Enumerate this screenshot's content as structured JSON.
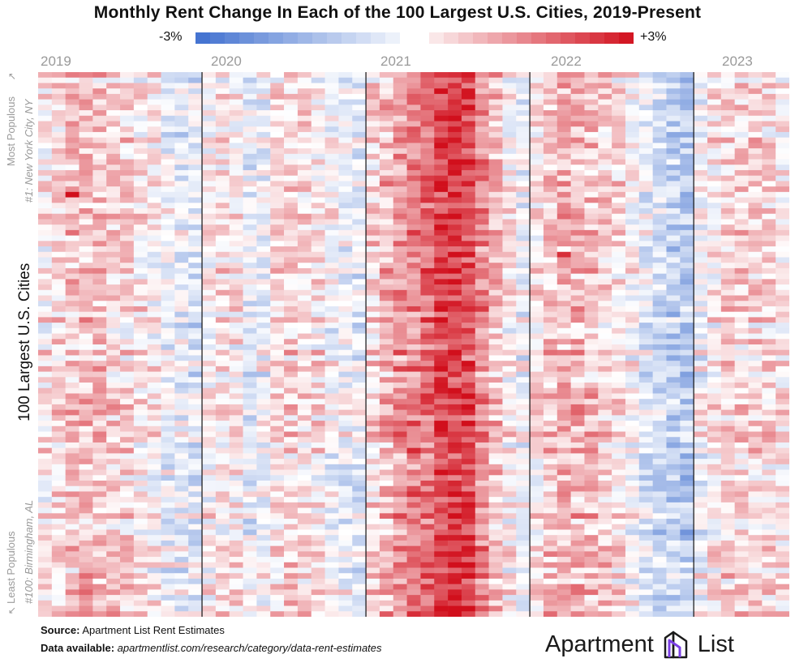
{
  "title": "Monthly Rent Change In Each of the 100 Largest U.S. Cities, 2019-Present",
  "legend": {
    "min_label": "-3%",
    "max_label": "+3%"
  },
  "years": [
    "2019",
    "2020",
    "2021",
    "2022",
    "2023"
  ],
  "y_axis": {
    "label": "100 Largest U.S. Cities",
    "top_label": "Most Populous",
    "top_sub": "#1: New York City, NY",
    "bottom_label": "Least Populous",
    "bottom_sub": "#100: Birmingham, AL"
  },
  "footer": {
    "source_label": "Source:",
    "source_text": "Apartment List Rent Estimates",
    "data_label": "Data available:",
    "data_text": "apartmentlist.com/research/category/data-rent-estimates"
  },
  "brand": {
    "name_left": "Apartment",
    "name_right": "List",
    "icon": "apartment-list-logo-icon"
  },
  "colors": {
    "negative": "#3f6fcf",
    "neutral": "#ffffff",
    "positive": "#d10f1c"
  },
  "chart_data": {
    "type": "heatmap",
    "title": "Monthly Rent Change In Each of the 100 Largest U.S. Cities, 2019-Present",
    "ylabel": "100 Largest U.S. Cities",
    "value_unit": "%",
    "color_range": [
      -3,
      3
    ],
    "years": [
      "2019",
      "2020",
      "2021",
      "2022",
      "2023"
    ],
    "rows": 100,
    "columns": 55,
    "column_start": "2019-01",
    "year_profile_percent": {
      "2019": [
        0.2,
        0.4,
        0.7,
        0.8,
        0.7,
        0.6,
        0.5,
        0.3,
        0.1,
        -0.2,
        -0.3,
        -0.4
      ],
      "2020": [
        0.1,
        0.3,
        0.2,
        -0.3,
        -0.2,
        0.4,
        0.5,
        0.4,
        0.3,
        0.0,
        -0.2,
        -0.4
      ],
      "2021": [
        0.4,
        0.9,
        1.3,
        1.6,
        1.9,
        2.3,
        2.4,
        2.2,
        1.5,
        0.8,
        0.2,
        -0.2
      ],
      "2022": [
        0.3,
        0.7,
        0.9,
        0.9,
        0.8,
        0.6,
        0.4,
        0.0,
        -0.4,
        -0.7,
        -0.9,
        -1.1
      ],
      "2023": [
        -0.1,
        0.3,
        0.5,
        0.6,
        0.5,
        0.4,
        0.3
      ]
    },
    "notable_cells": [
      {
        "row": 22,
        "column": 2,
        "value": 3.0
      },
      {
        "row": 33,
        "column": 38,
        "value": 2.6
      }
    ]
  }
}
